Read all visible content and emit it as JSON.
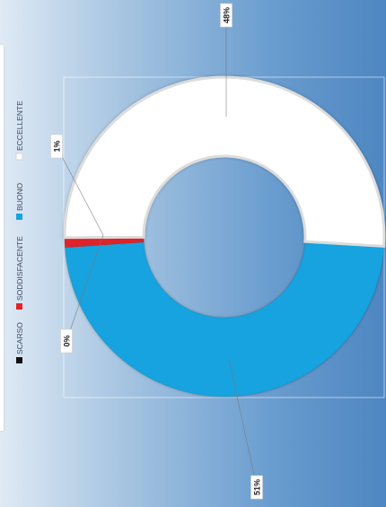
{
  "chart_data": {
    "type": "pie",
    "style": "donut",
    "orientation": "rotated 90° clockwise",
    "categories": [
      "SCARSO",
      "SODDISFACENTE",
      "BUONO",
      "ECCELLENTE"
    ],
    "values": [
      0,
      1,
      48,
      51
    ],
    "data_labels": [
      "0%",
      "1%",
      "48%",
      "51%"
    ],
    "colors": [
      "#111111",
      "#e0242b",
      "#19a3df",
      "#ffffff"
    ],
    "legend_position": "left"
  }
}
